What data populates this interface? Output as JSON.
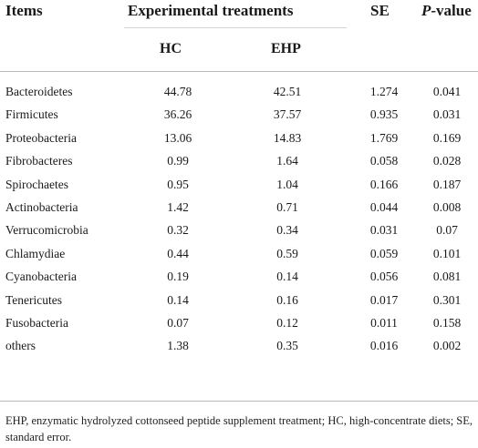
{
  "header": {
    "items": "Items",
    "experimental": "Experimental treatments",
    "se": "SE",
    "p_italic": "P",
    "p_rest": "-value",
    "hc": "HC",
    "ehp": "EHP"
  },
  "rows": [
    {
      "item": "Bacteroidetes",
      "hc": "44.78",
      "ehp": "42.51",
      "se": "1.274",
      "p": "0.041"
    },
    {
      "item": "Firmicutes",
      "hc": "36.26",
      "ehp": "37.57",
      "se": "0.935",
      "p": "0.031"
    },
    {
      "item": "Proteobacteria",
      "hc": "13.06",
      "ehp": "14.83",
      "se": "1.769",
      "p": "0.169"
    },
    {
      "item": "Fibrobacteres",
      "hc": "0.99",
      "ehp": "1.64",
      "se": "0.058",
      "p": "0.028"
    },
    {
      "item": "Spirochaetes",
      "hc": "0.95",
      "ehp": "1.04",
      "se": "0.166",
      "p": "0.187"
    },
    {
      "item": "Actinobacteria",
      "hc": "1.42",
      "ehp": "0.71",
      "se": "0.044",
      "p": "0.008"
    },
    {
      "item": "Verrucomicrobia",
      "hc": "0.32",
      "ehp": "0.34",
      "se": "0.031",
      "p": "0.07"
    },
    {
      "item": "Chlamydiae",
      "hc": "0.44",
      "ehp": "0.59",
      "se": "0.059",
      "p": "0.101"
    },
    {
      "item": "Cyanobacteria",
      "hc": "0.19",
      "ehp": "0.14",
      "se": "0.056",
      "p": "0.081"
    },
    {
      "item": "Tenericutes",
      "hc": "0.14",
      "ehp": "0.16",
      "se": "0.017",
      "p": "0.301"
    },
    {
      "item": "Fusobacteria",
      "hc": "0.07",
      "ehp": "0.12",
      "se": "0.011",
      "p": "0.158"
    },
    {
      "item": "others",
      "hc": "1.38",
      "ehp": "0.35",
      "se": "0.016",
      "p": "0.002"
    }
  ],
  "footnote": "EHP, enzymatic hydrolyzed cottonseed peptide supplement treatment; HC, high-concentrate diets; SE, standard error."
}
